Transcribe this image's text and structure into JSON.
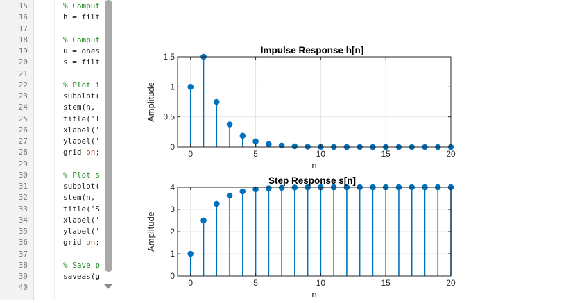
{
  "editor": {
    "lines": [
      {
        "number": "15",
        "parts": [
          {
            "t": "% Comput",
            "c": "cm"
          }
        ]
      },
      {
        "number": "16",
        "parts": [
          {
            "t": "h = filt",
            "c": ""
          }
        ]
      },
      {
        "number": "17",
        "parts": []
      },
      {
        "number": "18",
        "parts": [
          {
            "t": "% Comput",
            "c": "cm"
          }
        ]
      },
      {
        "number": "19",
        "parts": [
          {
            "t": "u = ones",
            "c": ""
          }
        ]
      },
      {
        "number": "20",
        "parts": [
          {
            "t": "s = filt",
            "c": ""
          }
        ]
      },
      {
        "number": "21",
        "parts": []
      },
      {
        "number": "22",
        "parts": [
          {
            "t": "% Plot i",
            "c": "cm"
          }
        ]
      },
      {
        "number": "23",
        "parts": [
          {
            "t": "subplot(",
            "c": ""
          }
        ]
      },
      {
        "number": "24",
        "parts": [
          {
            "t": "stem(n,",
            "c": ""
          }
        ]
      },
      {
        "number": "25",
        "parts": [
          {
            "t": "title('I",
            "c": ""
          }
        ]
      },
      {
        "number": "26",
        "parts": [
          {
            "t": "xlabel('",
            "c": ""
          }
        ]
      },
      {
        "number": "27",
        "parts": [
          {
            "t": "ylabel('",
            "c": ""
          }
        ]
      },
      {
        "number": "28",
        "parts": [
          {
            "t": "grid ",
            "c": ""
          },
          {
            "t": "on",
            "c": "kw"
          },
          {
            "t": ";",
            "c": ""
          }
        ]
      },
      {
        "number": "29",
        "parts": []
      },
      {
        "number": "30",
        "parts": [
          {
            "t": "% Plot s",
            "c": "cm"
          }
        ]
      },
      {
        "number": "31",
        "parts": [
          {
            "t": "subplot(",
            "c": ""
          }
        ]
      },
      {
        "number": "32",
        "parts": [
          {
            "t": "stem(n,",
            "c": ""
          }
        ]
      },
      {
        "number": "33",
        "parts": [
          {
            "t": "title('S",
            "c": ""
          }
        ]
      },
      {
        "number": "34",
        "parts": [
          {
            "t": "xlabel('",
            "c": ""
          }
        ]
      },
      {
        "number": "35",
        "parts": [
          {
            "t": "ylabel('",
            "c": ""
          }
        ]
      },
      {
        "number": "36",
        "parts": [
          {
            "t": "grid ",
            "c": ""
          },
          {
            "t": "on",
            "c": "kw"
          },
          {
            "t": ";",
            "c": ""
          }
        ]
      },
      {
        "number": "37",
        "parts": []
      },
      {
        "number": "38",
        "parts": [
          {
            "t": "% Save p",
            "c": "cm"
          }
        ]
      },
      {
        "number": "39",
        "parts": [
          {
            "t": "saveas(g",
            "c": ""
          }
        ]
      },
      {
        "number": "40",
        "parts": []
      }
    ],
    "scroll_down_icon": "chevron-down-icon"
  },
  "colors": {
    "stem": "#0072bd",
    "grid": "#e5e5e5",
    "axis": "#262626"
  },
  "chart_data": [
    {
      "type": "stem",
      "title": "Impulse Response h[n]",
      "xlabel": "n",
      "ylabel": "Amplitude",
      "xlim": [
        -1,
        20
      ],
      "ylim": [
        0,
        1.5
      ],
      "xticks": [
        0,
        5,
        10,
        15,
        20
      ],
      "yticks": [
        0,
        0.5,
        1,
        1.5
      ],
      "ytick_labels": [
        "0",
        "0.5",
        "1",
        "1.5"
      ],
      "grid": true,
      "x": [
        0,
        1,
        2,
        3,
        4,
        5,
        6,
        7,
        8,
        9,
        10,
        11,
        12,
        13,
        14,
        15,
        16,
        17,
        18,
        19,
        20
      ],
      "values": [
        1,
        1.5,
        0.75,
        0.375,
        0.1875,
        0.0938,
        0.0469,
        0.0234,
        0.0117,
        0.0059,
        0.0029,
        0.0015,
        0.0007,
        0.0004,
        0.0002,
        0.0001,
        0,
        0,
        0,
        0,
        0
      ]
    },
    {
      "type": "stem",
      "title": "Step Response s[n]",
      "xlabel": "n",
      "ylabel": "Amplitude",
      "xlim": [
        -1,
        20
      ],
      "ylim": [
        0,
        4
      ],
      "xticks": [
        0,
        5,
        10,
        15,
        20
      ],
      "yticks": [
        0,
        1,
        2,
        3,
        4
      ],
      "ytick_labels": [
        "0",
        "1",
        "2",
        "3",
        "4"
      ],
      "grid": true,
      "x": [
        0,
        1,
        2,
        3,
        4,
        5,
        6,
        7,
        8,
        9,
        10,
        11,
        12,
        13,
        14,
        15,
        16,
        17,
        18,
        19,
        20
      ],
      "values": [
        1,
        2.5,
        3.25,
        3.625,
        3.8125,
        3.9063,
        3.9531,
        3.9766,
        3.9883,
        3.9941,
        3.9971,
        3.9985,
        3.9993,
        3.9996,
        3.9998,
        3.9999,
        4,
        4,
        4,
        4,
        4
      ]
    }
  ]
}
